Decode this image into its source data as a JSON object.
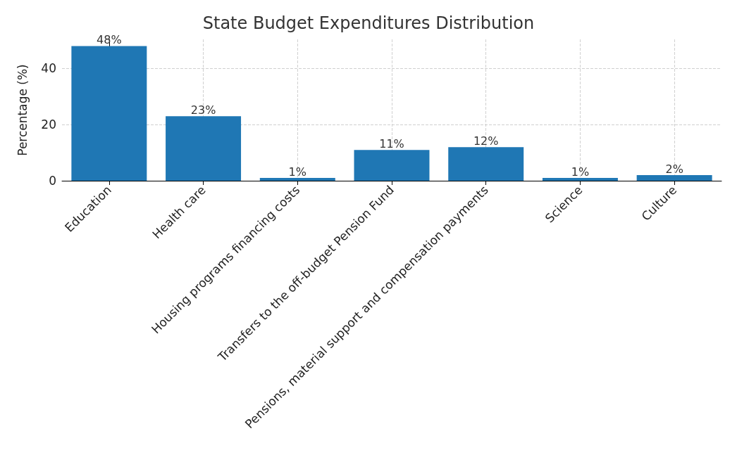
{
  "chart_data": {
    "type": "bar",
    "title": "State Budget Expenditures Distribution",
    "ylabel": "Percentage (%)",
    "categories": [
      "Education",
      "Health care",
      "Housing programs financing costs",
      "Transfers to the off-budget Pension Fund",
      "Pensions, material support and compensation payments",
      "Science",
      "Culture"
    ],
    "values": [
      48,
      23,
      1,
      11,
      12,
      1,
      2
    ],
    "value_labels": [
      "48%",
      "23%",
      "1%",
      "11%",
      "12%",
      "1%",
      "2%"
    ],
    "color": "#1f77b4",
    "ylim": [
      0,
      50.4
    ],
    "yticks": [
      0,
      20,
      40
    ],
    "grid": true
  }
}
